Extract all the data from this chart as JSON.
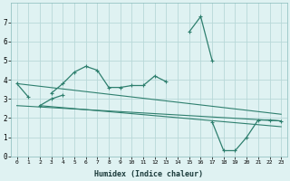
{
  "xlabel": "Humidex (Indice chaleur)",
  "x_values": [
    0,
    1,
    2,
    3,
    4,
    5,
    6,
    7,
    8,
    9,
    10,
    11,
    12,
    13,
    14,
    15,
    16,
    17,
    18,
    19,
    20,
    21,
    22,
    23
  ],
  "line1_y": [
    3.8,
    3.1,
    null,
    3.3,
    3.8,
    4.4,
    4.7,
    4.5,
    3.6,
    3.6,
    3.7,
    3.7,
    4.2,
    3.9,
    null,
    6.5,
    7.3,
    5.0,
    null,
    null,
    null,
    null,
    null,
    null
  ],
  "line2_y": [
    null,
    null,
    2.65,
    3.0,
    3.2,
    null,
    null,
    null,
    null,
    null,
    null,
    null,
    null,
    null,
    null,
    null,
    null,
    1.8,
    0.3,
    0.3,
    1.0,
    1.9,
    1.9,
    1.85
  ],
  "trend1_x": [
    0,
    23
  ],
  "trend1_y": [
    3.8,
    2.2
  ],
  "trend2_x": [
    0,
    23
  ],
  "trend2_y": [
    2.65,
    1.85
  ],
  "trend3_x": [
    2,
    23
  ],
  "trend3_y": [
    2.65,
    1.55
  ],
  "bg_color": "#dff2f2",
  "grid_color": "#b8d8d8",
  "line_color": "#2e7f6e",
  "ylim": [
    0,
    8
  ],
  "xlim": [
    -0.5,
    23.5
  ],
  "yticks": [
    0,
    1,
    2,
    3,
    4,
    5,
    6,
    7
  ],
  "xticks": [
    0,
    1,
    2,
    3,
    4,
    5,
    6,
    7,
    8,
    9,
    10,
    11,
    12,
    13,
    14,
    15,
    16,
    17,
    18,
    19,
    20,
    21,
    22,
    23
  ]
}
